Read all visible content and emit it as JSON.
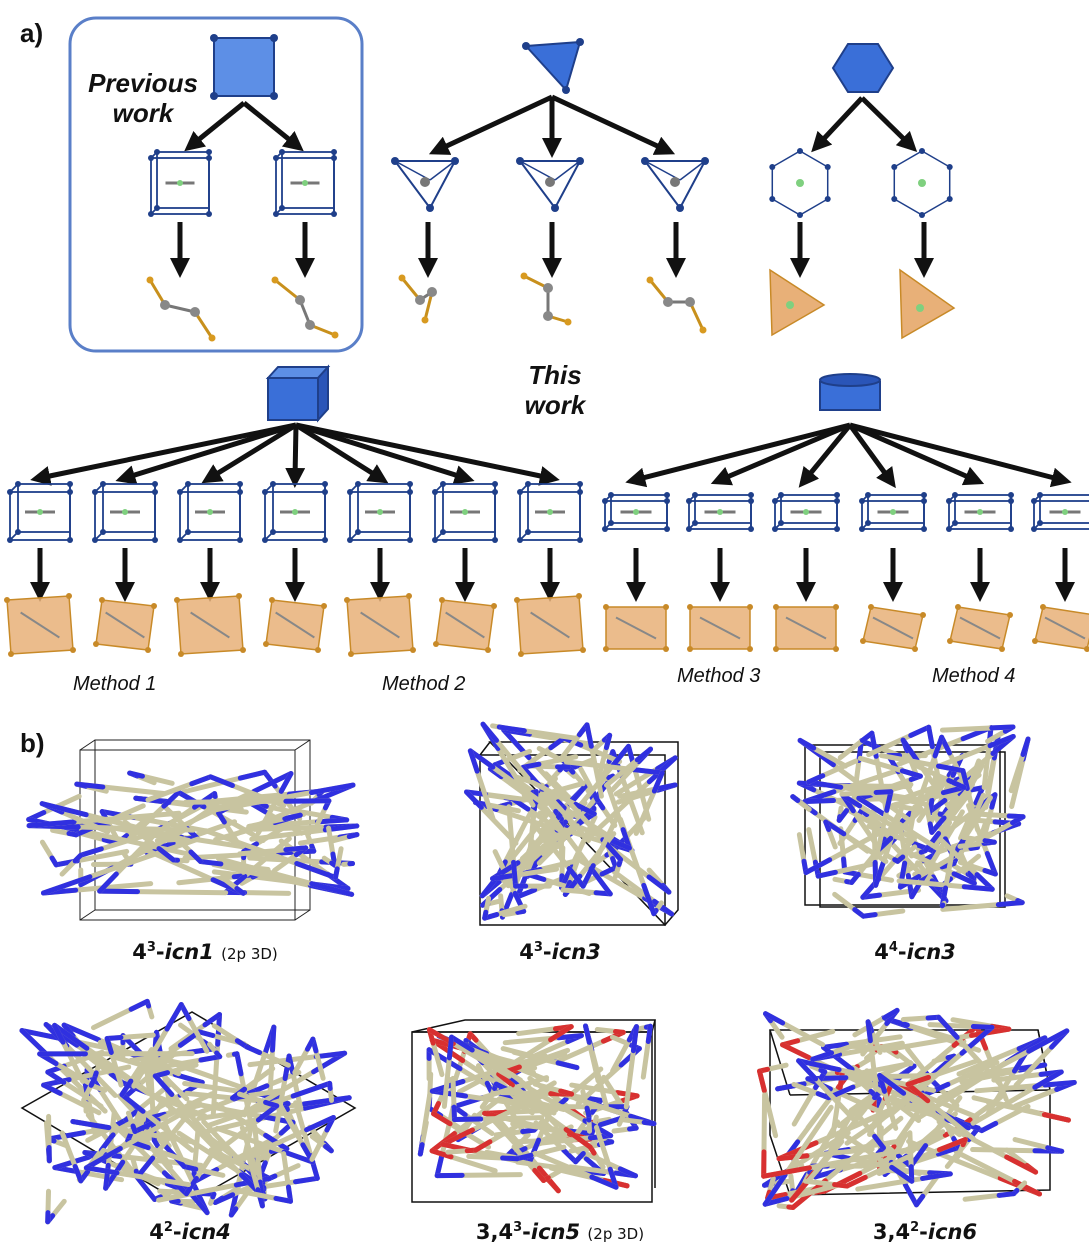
{
  "panel_a": {
    "letter": "a)",
    "previous_work": [
      "Previous",
      "work"
    ],
    "this_work": [
      "This",
      "work"
    ],
    "methods": [
      "Method 1",
      "Method 2",
      "Method 3",
      "Method 4"
    ]
  },
  "panel_b": {
    "letter": "b)",
    "nets": [
      {
        "sup": "3",
        "base": "4",
        "name": "icn1",
        "note": "(2p 3D)"
      },
      {
        "sup": "3",
        "base": "4",
        "name": "icn3",
        "note": ""
      },
      {
        "sup": "4",
        "base": "4",
        "name": "icn3",
        "note": ""
      },
      {
        "sup": "2",
        "base": "4",
        "name": "icn4",
        "note": ""
      },
      {
        "sup": "3",
        "base": "3,4",
        "name": "icn5",
        "note": "(2p 3D)"
      },
      {
        "sup": "2",
        "base": "3,4",
        "name": "icn6",
        "note": ""
      }
    ]
  },
  "colors": {
    "polyhedron_blue": "#3a6fd8",
    "frame_blue": "#1f3f8a",
    "ligand_orange": "#e8b078",
    "ligand_edge": "#c88a28",
    "arrow": "#111111",
    "bond_tan": "#c8c4a0",
    "atom_blue": "#3030e0",
    "atom_red": "#d83030",
    "box_border": "#5a7fc8"
  }
}
